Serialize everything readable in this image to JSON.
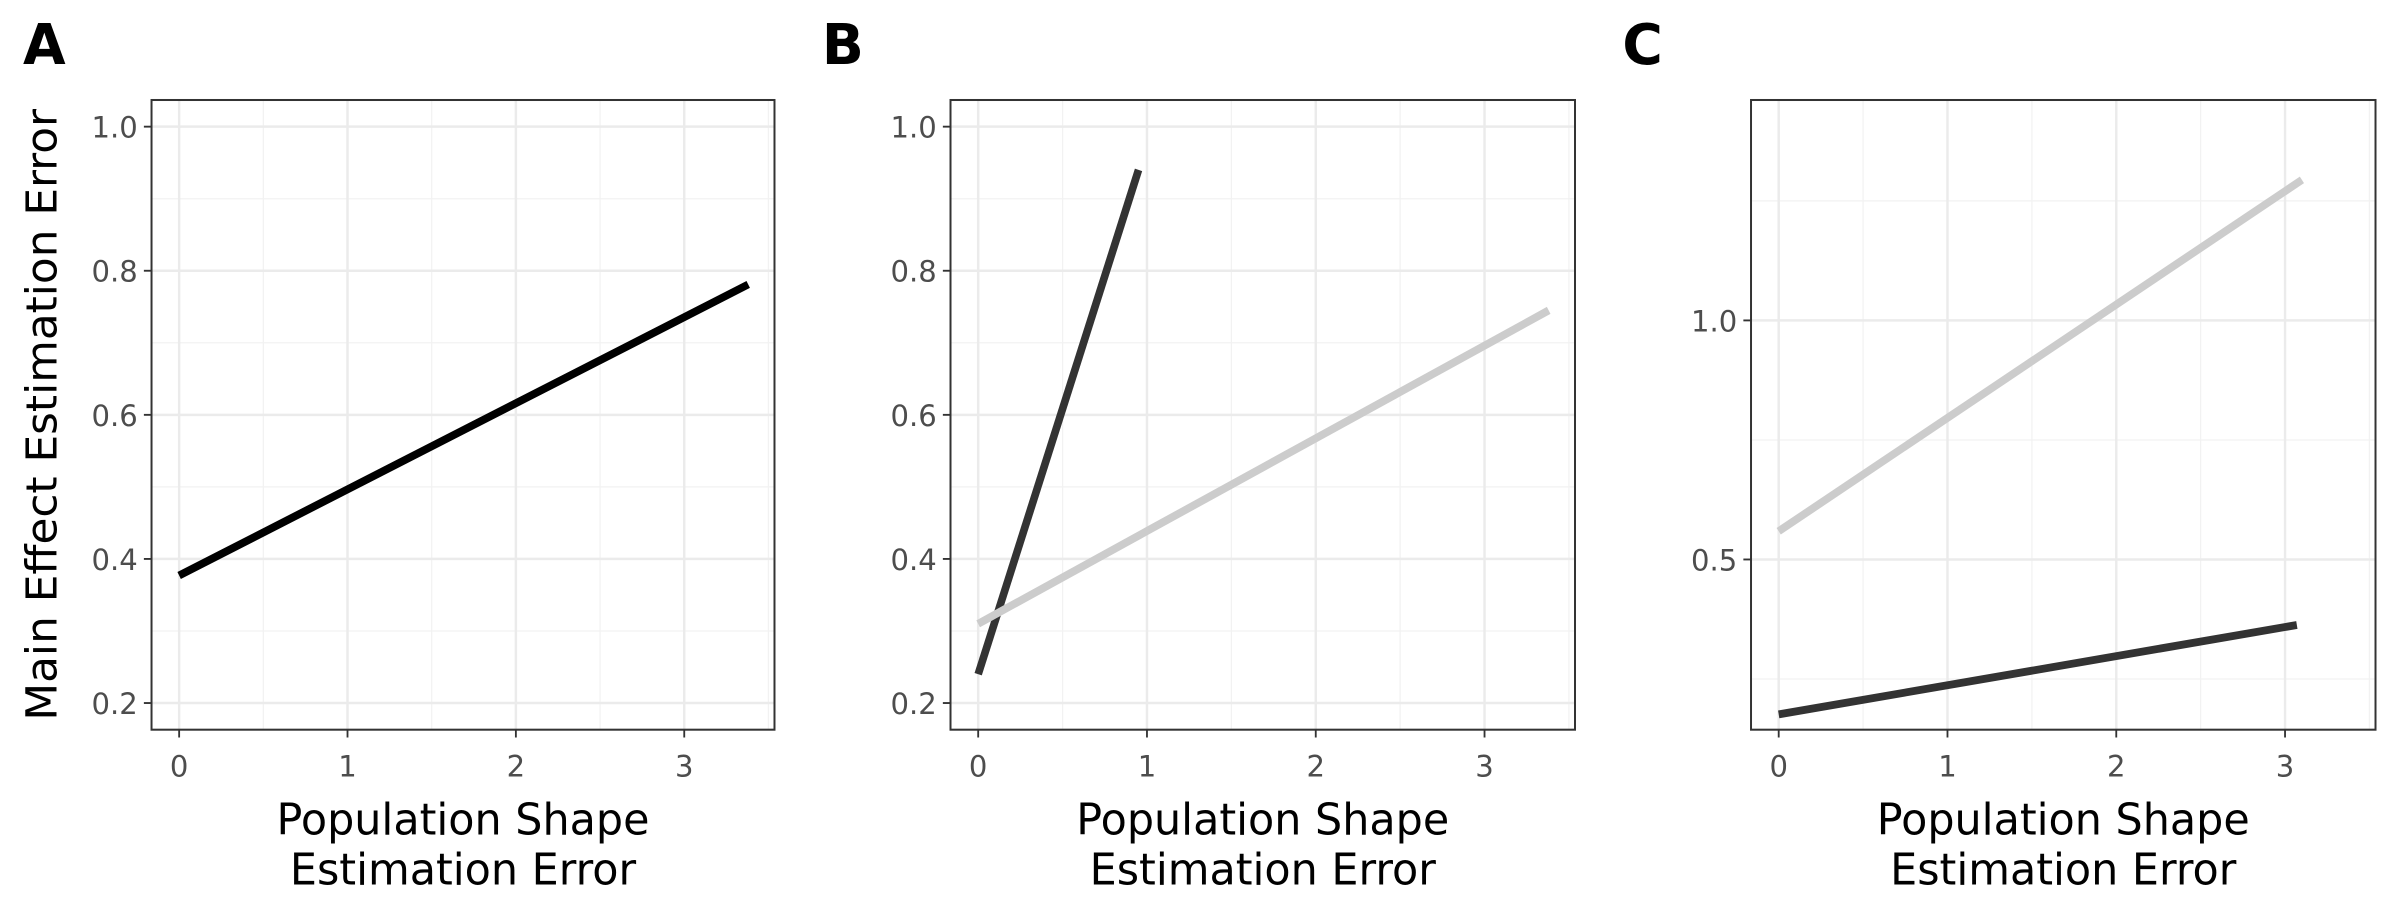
{
  "chart_data": [
    {
      "type": "line",
      "panel": "A",
      "ylabel": "Main Effect Estimation Error",
      "xlabel": [
        "Population Shape",
        "Estimation Error"
      ],
      "xlim": [
        -0.164,
        3.536
      ],
      "xticks": [
        0,
        1,
        2,
        3
      ],
      "ylim": [
        0.163,
        1.037
      ],
      "yticks": [
        0.2,
        0.4,
        0.6,
        0.8,
        {
          "value": 1.0,
          "label": "1.0"
        }
      ],
      "grid": true,
      "series": [
        {
          "color": "#000000",
          "x": [
            0,
            3.38
          ],
          "values": [
            0.377,
            0.781
          ]
        }
      ]
    },
    {
      "type": "line",
      "panel": "B",
      "xlabel": [
        "Population Shape",
        "Estimation Error"
      ],
      "xlim": [
        -0.164,
        3.536
      ],
      "xticks": [
        0,
        1,
        2,
        3
      ],
      "ylim": [
        0.163,
        1.037
      ],
      "yticks": [
        0.2,
        0.4,
        0.6,
        0.8,
        {
          "value": 1.0,
          "label": "1.0"
        }
      ],
      "grid": true,
      "series": [
        {
          "color": "#333333",
          "x": [
            0,
            0.95
          ],
          "values": [
            0.24,
            0.94
          ]
        },
        {
          "color": "#cccccc",
          "x": [
            0,
            3.38
          ],
          "values": [
            0.31,
            0.745
          ]
        }
      ]
    },
    {
      "type": "line",
      "panel": "C",
      "xlabel": [
        "Population Shape",
        "Estimation Error"
      ],
      "xlim": [
        -0.164,
        3.536
      ],
      "xticks": [
        0,
        1,
        2,
        3
      ],
      "ylim": [
        0.144,
        1.461
      ],
      "yticks": [
        0.5,
        {
          "value": 1.0,
          "label": "1.0"
        }
      ],
      "grid": true,
      "series": [
        {
          "color": "#cccccc",
          "x": [
            0,
            3.1
          ],
          "values": [
            0.559,
            1.294
          ]
        },
        {
          "color": "#333333",
          "x": [
            0,
            3.07
          ],
          "values": [
            0.176,
            0.363
          ]
        }
      ]
    }
  ]
}
